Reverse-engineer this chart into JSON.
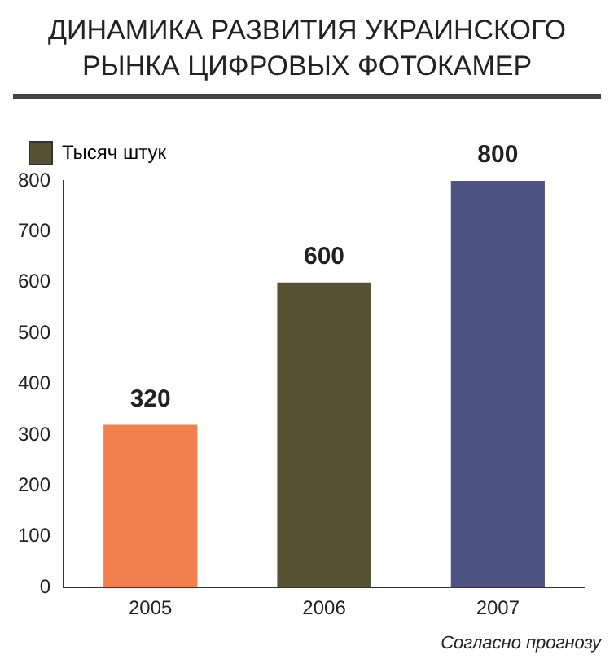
{
  "chart_data": {
    "type": "bar",
    "title": "ДИНАМИКА РАЗВИТИЯ УКРАИНСКОГО РЫНКА ЦИФРОВЫХ ФОТОКАМЕР",
    "categories": [
      "2005",
      "2006",
      "2007"
    ],
    "series": [
      {
        "name": "Тысяч штук",
        "color": "#565233",
        "colors": [
          "#f2804e",
          "#565233",
          "#4c5282"
        ],
        "values": [
          320,
          600,
          800
        ]
      }
    ],
    "ylim": [
      0,
      800
    ],
    "yticks": [
      0,
      100,
      200,
      300,
      400,
      500,
      600,
      700,
      800
    ],
    "grid": false,
    "legend": "top left",
    "data_labels": true,
    "annotations": [
      "Согласно прогнозу"
    ]
  }
}
